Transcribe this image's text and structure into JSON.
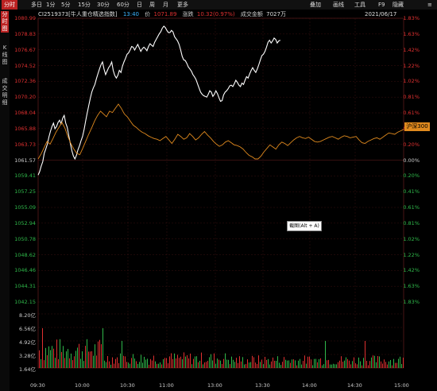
{
  "tabs": [
    {
      "label": "分时",
      "active": true
    },
    {
      "label": "多日",
      "active": false
    },
    {
      "label": "1分",
      "active": false
    },
    {
      "label": "5分",
      "active": false
    },
    {
      "label": "15分",
      "active": false
    },
    {
      "label": "30分",
      "active": false
    },
    {
      "label": "60分",
      "active": false
    },
    {
      "label": "日",
      "active": false
    },
    {
      "label": "周",
      "active": false
    },
    {
      "label": "月",
      "active": false
    },
    {
      "label": "更多",
      "active": false
    }
  ],
  "right_tabs": [
    "叠加",
    "画线",
    "工具",
    "F9",
    "隐藏"
  ],
  "side_tabs": [
    {
      "label": "分\n时\n图",
      "active": true
    },
    {
      "label": "K\n线\n图",
      "active": false
    },
    {
      "label": "成\n交\n明\n细",
      "active": false
    }
  ],
  "info": {
    "code": "CI2519373[牛人重仓精选指数]",
    "time": "13:40",
    "price_label": "价",
    "price": "1071.89",
    "change_label": "涨跌",
    "change": "10.32(0.97%)",
    "amount_label": "成交金额",
    "amount": "7027万",
    "date": "2021/06/17"
  },
  "compare_tag": "沪深300",
  "tooltip": "截图(Alt + A)",
  "colors": {
    "up": "#e03030",
    "down": "#2fb84a",
    "index_line": "#ffffff",
    "compare_line": "#e08a1e",
    "grid": "#3a1010"
  },
  "chart_data": {
    "type": "line",
    "prev_close": 1061.57,
    "price_ticks": [
      "1080.99",
      "1078.83",
      "1076.67",
      "1074.52",
      "1072.36",
      "1070.20",
      "1068.04",
      "1065.88",
      "1063.73",
      "1061.57",
      "1059.41",
      "1057.25",
      "1055.09",
      "1052.94",
      "1050.78",
      "1048.62",
      "1046.46",
      "1044.31",
      "1042.15"
    ],
    "pct_ticks": [
      "1.83%",
      "1.63%",
      "1.42%",
      "1.22%",
      "1.02%",
      "0.81%",
      "0.61%",
      "0.41%",
      "0.20%",
      "0.00%",
      "0.20%",
      "0.41%",
      "0.61%",
      "0.81%",
      "1.02%",
      "1.22%",
      "1.42%",
      "1.63%",
      "1.83%"
    ],
    "volume_ticks": [
      "8.20亿",
      "6.56亿",
      "4.92亿",
      "3.28亿",
      "1.64亿"
    ],
    "time_ticks": [
      "09:30",
      "10:00",
      "10:30",
      "11:00",
      "13:00",
      "13:30",
      "14:00",
      "14:30",
      "15:00"
    ],
    "series": [
      {
        "values": [
          1059.5,
          1060.0,
          1060.8,
          1061.4,
          1062.6,
          1063.2,
          1063.9,
          1064.9,
          1065.7,
          1066.4,
          1066.9,
          1066.1,
          1066.4,
          1067.0,
          1067.3,
          1066.8,
          1067.6,
          1068.0,
          1066.9,
          1066.3,
          1065.1,
          1064.0,
          1063.0,
          1062.2,
          1061.8,
          1062.3,
          1063.1,
          1063.7,
          1064.4,
          1065.0,
          1066.0,
          1067.2,
          1068.3,
          1069.4,
          1070.4,
          1071.3,
          1071.9,
          1072.4,
          1073.2,
          1073.9,
          1074.6,
          1075.2,
          1075.6,
          1074.6,
          1073.8,
          1074.3,
          1074.8,
          1075.1,
          1075.6,
          1074.4,
          1073.7,
          1073.3,
          1073.7,
          1074.4,
          1074.1,
          1075.0,
          1075.6,
          1076.1,
          1076.7,
          1076.9,
          1077.3,
          1077.8,
          1077.7,
          1077.3,
          1077.7,
          1078.1,
          1077.6,
          1077.1,
          1077.5,
          1077.7,
          1077.5,
          1077.2,
          1077.8,
          1078.2,
          1078.0,
          1077.8,
          1078.4,
          1078.8,
          1079.2,
          1079.6,
          1079.9,
          1080.4,
          1080.7,
          1080.5,
          1080.1,
          1079.8,
          1079.8,
          1080.1,
          1079.9,
          1079.2,
          1078.9,
          1078.6,
          1078.1,
          1077.3,
          1076.4,
          1075.9,
          1075.8,
          1075.4,
          1074.9,
          1074.6,
          1074.3,
          1073.8,
          1073.5,
          1073.1,
          1072.5,
          1071.9,
          1071.3,
          1071.0,
          1070.8,
          1070.7,
          1070.6,
          1071.0,
          1071.5,
          1071.3,
          1070.7,
          1071.0,
          1071.5,
          1071.1,
          1070.5,
          1070.0,
          1070.1,
          1070.9,
          1071.3,
          1071.5,
          1071.8,
          1072.2,
          1072.3,
          1072.1,
          1072.5,
          1073.0,
          1072.7,
          1072.3,
          1072.1,
          1072.6,
          1072.4,
          1073.0,
          1073.5,
          1073.3,
          1073.9,
          1074.4,
          1074.8,
          1074.4,
          1074.1,
          1074.6,
          1075.2,
          1075.9,
          1076.5,
          1076.7,
          1077.1,
          1077.7,
          1078.4,
          1078.7,
          1078.3,
          1078.6,
          1079.0,
          1078.8,
          1078.3,
          1078.6,
          1078.7
        ],
        "name": ""
      },
      {
        "name": "沪深300",
        "values": [
          1061.8,
          1062.5,
          1063.4,
          1064.3,
          1063.9,
          1064.7,
          1065.6,
          1066.3,
          1067.0,
          1066.2,
          1065.0,
          1064.0,
          1063.2,
          1062.6,
          1062.4,
          1063.3,
          1064.3,
          1065.3,
          1066.2,
          1067.2,
          1068.0,
          1068.6,
          1068.2,
          1067.8,
          1068.6,
          1068.4,
          1069.0,
          1069.6,
          1069.0,
          1068.2,
          1067.8,
          1067.2,
          1066.6,
          1066.3,
          1065.9,
          1065.6,
          1065.4,
          1065.1,
          1064.9,
          1064.7,
          1064.6,
          1064.4,
          1064.7,
          1065.0,
          1064.5,
          1064.0,
          1064.6,
          1065.3,
          1065.0,
          1064.6,
          1064.8,
          1065.4,
          1065.0,
          1064.5,
          1064.8,
          1065.3,
          1065.7,
          1065.2,
          1064.8,
          1064.3,
          1063.9,
          1063.6,
          1063.8,
          1064.2,
          1064.4,
          1064.1,
          1063.8,
          1063.7,
          1063.5,
          1063.2,
          1062.7,
          1062.3,
          1062.1,
          1061.8,
          1061.8,
          1062.2,
          1062.8,
          1063.3,
          1063.8,
          1063.5,
          1063.2,
          1063.8,
          1064.2,
          1064.0,
          1063.7,
          1064.1,
          1064.5,
          1064.8,
          1065.0,
          1064.8,
          1064.7,
          1064.9,
          1064.6,
          1064.3,
          1064.2,
          1064.3,
          1064.5,
          1064.7,
          1064.9,
          1065.0,
          1064.8,
          1064.6,
          1064.9,
          1065.1,
          1065.0,
          1064.8,
          1064.9,
          1065.0,
          1064.5,
          1064.1,
          1064.0,
          1064.3,
          1064.5,
          1064.7,
          1064.8,
          1064.6,
          1064.9,
          1065.2,
          1065.5,
          1065.4,
          1065.3,
          1065.6,
          1065.8,
          1066.0
        ]
      }
    ],
    "ylim": [
      1041.0,
      1081.5
    ]
  }
}
